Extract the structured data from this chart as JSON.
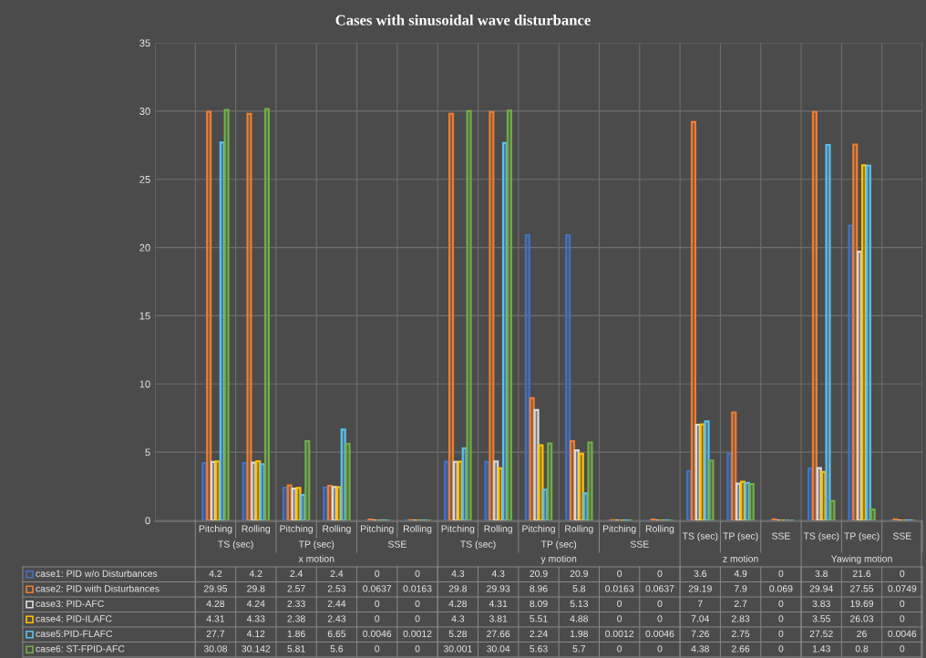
{
  "chart_data": {
    "type": "bar",
    "title": "Cases with sinusoidal wave disturbance",
    "categories": [
      null,
      "Pitching",
      "Rolling",
      "Pitching",
      "Rolling",
      "Pitching",
      "Rolling",
      "Pitching",
      "Rolling",
      "Pitching",
      "Rolling",
      "Pitching",
      "Rolling",
      "TS (sec)",
      "TP (sec)",
      "SSE",
      "TS (sec)",
      "TP (sec)",
      "SSE"
    ],
    "series": [
      {
        "name": "case1: PID w/o Disturbances",
        "color": "#4472c4",
        "values": [
          null,
          4.2,
          4.2,
          2.4,
          2.4,
          0,
          0,
          4.3,
          4.3,
          20.9,
          20.9,
          0,
          0,
          3.6,
          4.9,
          0,
          3.8,
          21.6,
          0
        ]
      },
      {
        "name": "case2: PID with Disturbances",
        "color": "#ed7d31",
        "values": [
          null,
          29.95,
          29.8,
          2.57,
          2.53,
          0.0637,
          0.0163,
          29.8,
          29.93,
          8.96,
          5.8,
          0.0163,
          0.0637,
          29.19,
          7.9,
          0.069,
          29.94,
          27.55,
          0.0749
        ]
      },
      {
        "name": "case3: PID-AFC",
        "color": "#d9d9d9",
        "values": [
          null,
          4.28,
          4.24,
          2.33,
          2.44,
          0,
          0,
          4.28,
          4.31,
          8.09,
          5.13,
          0,
          0,
          7,
          2.7,
          0,
          3.83,
          19.69,
          0
        ]
      },
      {
        "name": "case4: PID-ILAFC",
        "color": "#ffc000",
        "values": [
          null,
          4.31,
          4.33,
          2.38,
          2.43,
          0,
          0,
          4.3,
          3.81,
          5.51,
          4.88,
          0,
          0,
          7.04,
          2.83,
          0,
          3.55,
          26.03,
          0
        ]
      },
      {
        "name": "case5:PID-FLAFC",
        "color": "#5bc0f0",
        "values": [
          null,
          27.7,
          4.12,
          1.86,
          6.65,
          0.0046,
          0.0012,
          5.28,
          27.66,
          2.24,
          1.98,
          0.0012,
          0.0046,
          7.26,
          2.75,
          0,
          27.52,
          26,
          0.0046
        ]
      },
      {
        "name": "case6: ST-FPID-AFC",
        "color": "#70ad47",
        "values": [
          null,
          30.08,
          30.142,
          5.81,
          5.6,
          0,
          0,
          30.001,
          30.04,
          5.63,
          5.7,
          0,
          0,
          4.38,
          2.66,
          0,
          1.43,
          0.8,
          0
        ]
      }
    ],
    "annotations": [
      "TS (sec)",
      "TP (sec)",
      "SSE",
      "TS (sec)",
      "TP (sec)",
      "SSE",
      "x motion",
      "y motion",
      "z motion",
      "Yawing motion"
    ],
    "ylim": [
      0,
      35
    ],
    "yticks": [
      0,
      5,
      10,
      15,
      20,
      25,
      30,
      35
    ],
    "grid": "y",
    "legend": "bottom left",
    "data_labels": true
  }
}
